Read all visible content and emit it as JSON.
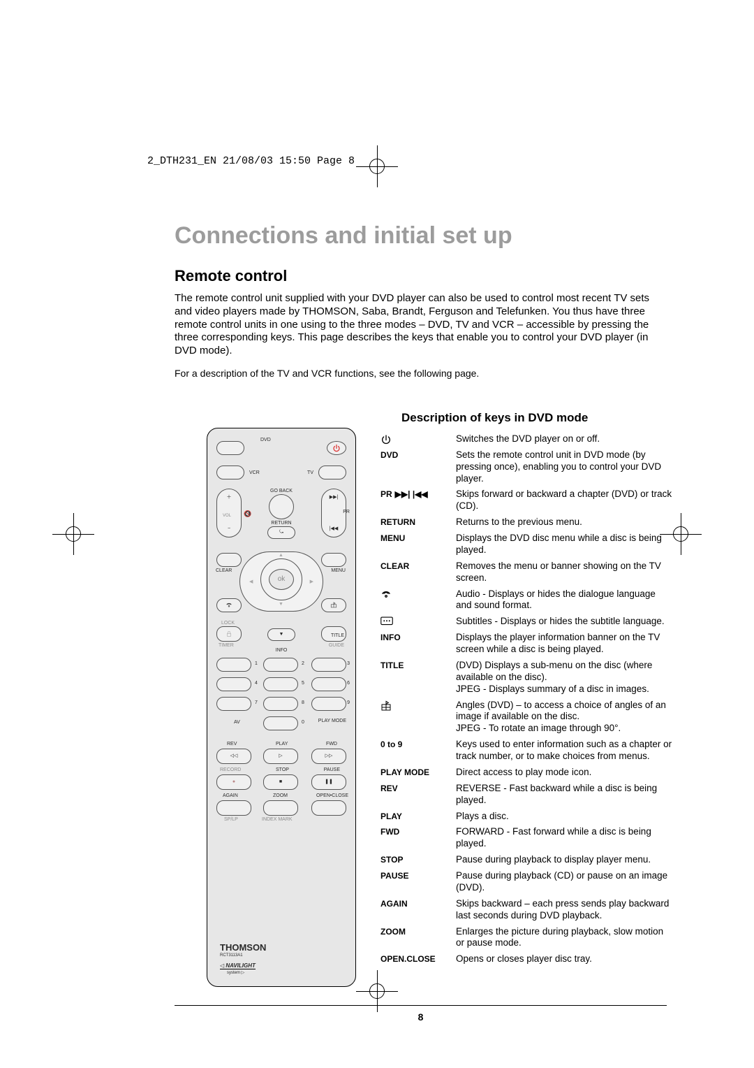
{
  "header_line": "2_DTH231_EN  21/08/03  15:50  Page 8",
  "main_title": "Connections and initial set up",
  "section_title": "Remote control",
  "intro": "The remote control unit supplied with your DVD player can also be used to control most recent TV sets and video players made by THOMSON, Saba, Brandt, Ferguson and Telefunken. You thus have three remote control units in one using to the three modes – DVD, TV and VCR – accessible by pressing the three corresponding keys. This page describes the keys that enable you to control your DVD player (in DVD mode).",
  "sub": "For a description of the TV and VCR functions, see the following page.",
  "desc_title": "Description of keys in DVD mode",
  "remote": {
    "top_labels": {
      "dvd": "DVD",
      "vcr": "VCR",
      "tv": "TV"
    },
    "mid_labels": {
      "goback": "GO BACK",
      "pr": "PR",
      "return": "RETURN",
      "clear": "CLEAR",
      "menu": "MENU",
      "lock": "LOCK",
      "vol": "VOL",
      "timer": "TIMER",
      "guide": "GUIDE",
      "title": "TITLE",
      "info": "INFO"
    },
    "numpad": [
      "1",
      "2",
      "3",
      "4",
      "5",
      "6",
      "7",
      "8",
      "9",
      "0"
    ],
    "bottom_labels": {
      "av": "AV",
      "playmode": "PLAY MODE",
      "rev": "REV",
      "play": "PLAY",
      "fwd": "FWD",
      "record": "RECORD",
      "stop": "STOP",
      "pause": "PAUSE",
      "again": "AGAIN",
      "zoom": "ZOOM",
      "openclose": "OPEN•CLOSE",
      "splp": "SP/LP",
      "index": "INDEX MARK"
    },
    "ok": "ok",
    "brand": "THOMSON",
    "model": "RCT3113A1",
    "navi": "NAVILIGHT",
    "navi_sub": "system"
  },
  "keys": [
    {
      "label": "",
      "icon": "power",
      "desc": "Switches the DVD player on or off."
    },
    {
      "label": "DVD",
      "desc": "Sets the remote control unit in DVD mode (by pressing once), enabling you to control your DVD player."
    },
    {
      "label": "PR",
      "icon": "skip",
      "desc": "Skips forward or backward a chapter (DVD) or track (CD)."
    },
    {
      "label": "RETURN",
      "desc": "Returns to the previous menu."
    },
    {
      "label": "MENU",
      "desc": "Displays the DVD disc menu while a disc is being played."
    },
    {
      "label": "CLEAR",
      "desc": "Removes the menu or banner showing on the TV screen."
    },
    {
      "label": "",
      "icon": "audio",
      "desc": "Audio - Displays or hides the dialogue language and sound format."
    },
    {
      "label": "",
      "icon": "subtitle",
      "desc": "Subtitles - Displays or hides the subtitle language."
    },
    {
      "label": "INFO",
      "desc": "Displays the player information banner on the TV screen while a disc is being played."
    },
    {
      "label": "TITLE",
      "desc": "(DVD) Displays a sub-menu on the disc (where available on the disc).\nJPEG - Displays summary of a disc in images."
    },
    {
      "label": "",
      "icon": "angle",
      "desc": "Angles (DVD) – to access a choice of angles of an image if available on the disc.\nJPEG - To rotate an image through 90°."
    },
    {
      "label": "0 to 9",
      "desc": "Keys used to enter information such as a chapter or track number, or to make choices from menus."
    },
    {
      "label": "PLAY MODE",
      "desc": "Direct access to play mode icon."
    },
    {
      "label": "REV",
      "desc": "REVERSE - Fast backward while a disc is being played."
    },
    {
      "label": "PLAY",
      "desc": "Plays a disc."
    },
    {
      "label": "FWD",
      "desc": "FORWARD - Fast forward while a disc is being played."
    },
    {
      "label": "STOP",
      "desc": "Pause during playback to display player menu."
    },
    {
      "label": "PAUSE",
      "desc": "Pause during playback (CD) or pause on an image (DVD)."
    },
    {
      "label": "AGAIN",
      "desc": "Skips backward – each press sends play backward last seconds during DVD playback."
    },
    {
      "label": "ZOOM",
      "desc": "Enlarges the picture during playback, slow motion or pause mode."
    },
    {
      "label": "OPEN.CLOSE",
      "desc": "Opens or closes player disc tray."
    }
  ],
  "page_number": "8",
  "colors": {
    "title_grey": "#9c9c9c",
    "remote_bg": "#e7e7e7",
    "text": "#000000"
  },
  "typography": {
    "title_fontsize": 34,
    "section_fontsize": 22,
    "body_fontsize": 15,
    "key_label_fontsize": 12,
    "key_desc_fontsize": 13.5
  }
}
